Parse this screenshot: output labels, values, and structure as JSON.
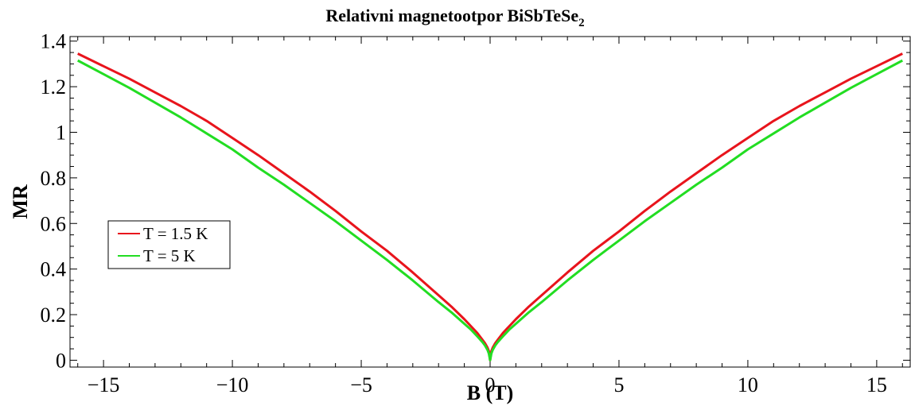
{
  "chart_data": {
    "type": "line",
    "title": "Relativni magnetootpor BiSbTeSe",
    "title_subscript": "2",
    "xlabel": "B (T)",
    "ylabel": "MR",
    "xlim": [
      -16.3,
      16.3
    ],
    "ylim": [
      -0.03,
      1.42
    ],
    "x_ticks": [
      -15,
      -10,
      -5,
      0,
      5,
      10,
      15
    ],
    "x_tick_labels": [
      "−15",
      "−10",
      "−5",
      "0",
      "5",
      "10",
      "15"
    ],
    "y_ticks": [
      0,
      0.2,
      0.4,
      0.6,
      0.8,
      1.0,
      1.2,
      1.4
    ],
    "y_tick_labels": [
      "0",
      "0.2",
      "0.4",
      "0.6",
      "0.8",
      "1",
      "1.2",
      "1.4"
    ],
    "grid": false,
    "legend_position": "center-left",
    "series": [
      {
        "name": "T = 1.5 K",
        "color": "#e8141c",
        "x": [
          0,
          0.05,
          0.1,
          0.2,
          0.3,
          0.5,
          0.75,
          1,
          1.5,
          2,
          3,
          4,
          5,
          6,
          7,
          8,
          9,
          10,
          11,
          12,
          13,
          14,
          15,
          16
        ],
        "y": [
          0,
          0.04,
          0.055,
          0.075,
          0.09,
          0.12,
          0.15,
          0.18,
          0.235,
          0.285,
          0.385,
          0.48,
          0.565,
          0.655,
          0.74,
          0.82,
          0.9,
          0.975,
          1.05,
          1.115,
          1.175,
          1.235,
          1.29,
          1.345
        ]
      },
      {
        "name": "T = 5 K",
        "color": "#22dd22",
        "x": [
          0,
          0.05,
          0.1,
          0.2,
          0.3,
          0.5,
          0.75,
          1,
          1.5,
          2,
          3,
          4,
          5,
          6,
          7,
          8,
          9,
          10,
          11,
          12,
          13,
          14,
          15,
          16
        ],
        "y": [
          0,
          0.03,
          0.045,
          0.065,
          0.08,
          0.105,
          0.135,
          0.16,
          0.21,
          0.255,
          0.35,
          0.44,
          0.525,
          0.61,
          0.69,
          0.77,
          0.845,
          0.925,
          0.995,
          1.065,
          1.13,
          1.195,
          1.255,
          1.315
        ]
      }
    ]
  }
}
